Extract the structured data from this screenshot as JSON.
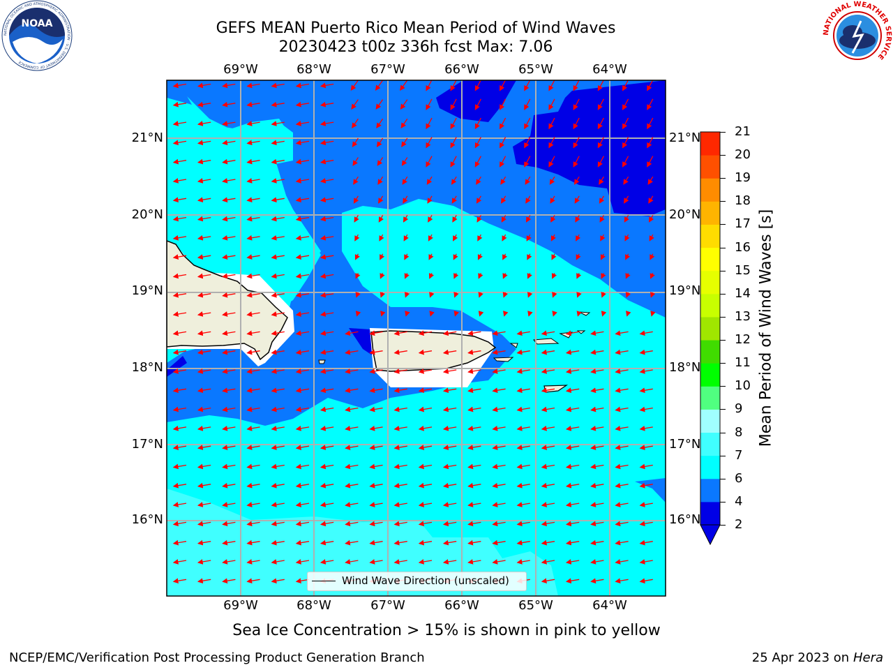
{
  "title": {
    "line1": "GEFS MEAN Puerto Rico Mean Period of Wind Waves",
    "line2": "20230423 t00z 336h fcst   Max: 7.06"
  },
  "logos": {
    "left": "noaa-logo",
    "left_ring_text": "NATIONAL OCEANIC AND ATMOSPHERIC ADMINISTRATION · U.S. DEPARTMENT OF COMMERCE",
    "left_badge": "NOAA",
    "right": "nws-logo",
    "right_ring_text": "NATIONAL WEATHER SERVICE"
  },
  "map": {
    "lon_labels": [
      "69°W",
      "68°W",
      "67°W",
      "66°W",
      "65°W",
      "64°W"
    ],
    "lat_labels": [
      "21°N",
      "20°N",
      "19°N",
      "18°N",
      "17°N",
      "16°N"
    ],
    "legend_label": "Wind Wave Direction (unscaled)",
    "land_color": "#efefdc",
    "arrow_color": "#ff0000",
    "gridline_color": "#b0b0b0",
    "period_field": "mean wind-wave period 2–8 s over domain"
  },
  "colorbar": {
    "label": "Mean Period of Wind Waves [s]",
    "ticks": [
      "2",
      "4",
      "6",
      "7",
      "8",
      "9",
      "10",
      "11",
      "12",
      "13",
      "14",
      "15",
      "16",
      "17",
      "18",
      "19",
      "20",
      "21"
    ],
    "colors": [
      "#0000e6",
      "#0a78ff",
      "#00ffff",
      "#40ffff",
      "#a0ffff",
      "#50ff80",
      "#00ff00",
      "#40dc00",
      "#a0e600",
      "#c8ff00",
      "#e6ff00",
      "#ffff00",
      "#ffdc00",
      "#ffb400",
      "#ff8c00",
      "#ff5000",
      "#ff2800",
      "#ff0000"
    ],
    "under_color": "#0000e6"
  },
  "footer": {
    "note": "Sea Ice Concentration > 15% is shown in pink to yellow",
    "credit_left": "NCEP/EMC/Verification Post Processing Product Generation Branch",
    "credit_date": "25 Apr 2023 on ",
    "credit_host": "Hera"
  }
}
